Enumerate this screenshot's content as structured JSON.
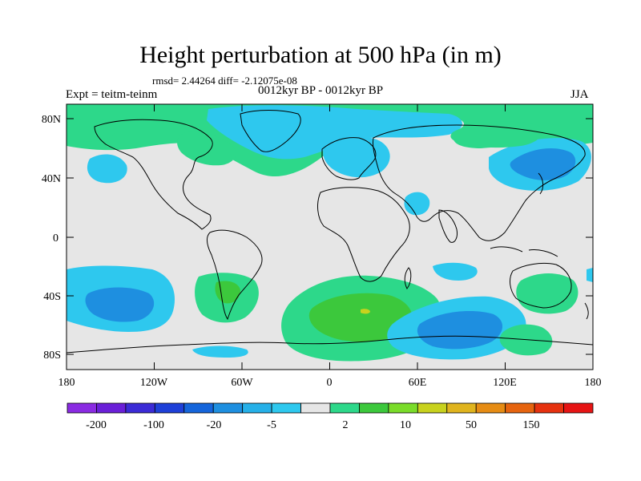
{
  "title": "Height perturbation at 500 hPa (in m)",
  "stats": "rmsd= 2.44264 diff= -2.12075e-08",
  "left_label": "Expt = teitm-teinm",
  "center_label": "0012kyr BP - 0012kyr BP",
  "right_label": "JJA",
  "lat_labels": [
    "80N",
    "40N",
    "0",
    "40S",
    "80S"
  ],
  "lon_labels": [
    "180",
    "120W",
    "60W",
    "0",
    "60E",
    "120E",
    "180"
  ],
  "colorbar": {
    "colors": [
      "#8A2BE2",
      "#6A1FD8",
      "#3B2BD6",
      "#1E40D8",
      "#1565DB",
      "#1E8FE0",
      "#26B0E8",
      "#2EC8EE",
      "#E6E6E6",
      "#2DD88A",
      "#3CC83C",
      "#7ADC2A",
      "#C8D21E",
      "#E0B41E",
      "#E68C14",
      "#E6640F",
      "#E6320F",
      "#E61414"
    ],
    "tick_labels": [
      "-200",
      "-100",
      "-20",
      "-5",
      "2",
      "10",
      "50",
      "150"
    ]
  },
  "colors": {
    "neutral": "#E6E6E6",
    "cyan": "#2EC8EE",
    "blue": "#26A8E6",
    "mint": "#2DD88A",
    "green": "#3CC83C",
    "yellow": "#C8D21E"
  }
}
